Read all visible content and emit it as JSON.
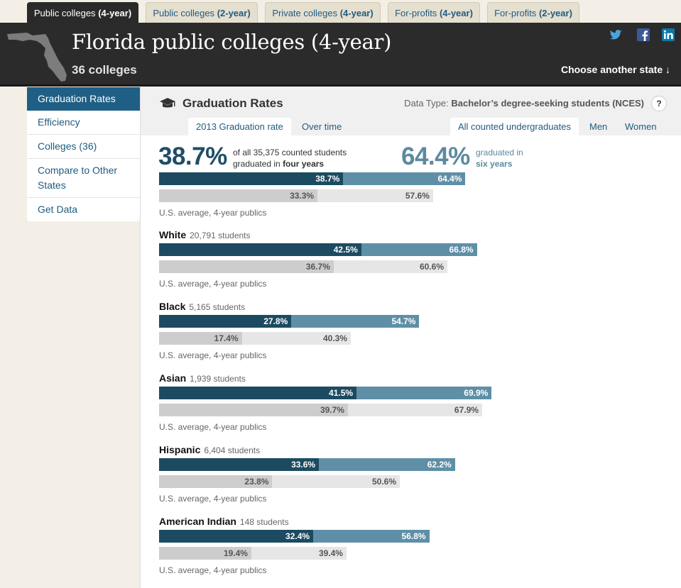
{
  "tabs": [
    {
      "label_main": "Public colleges",
      "label_sub": "(4-year)",
      "active": true
    },
    {
      "label_main": "Public colleges",
      "label_sub": "(2-year)",
      "active": false
    },
    {
      "label_main": "Private colleges",
      "label_sub": "(4-year)",
      "active": false
    },
    {
      "label_main": "For-profits",
      "label_sub": "(4-year)",
      "active": false
    },
    {
      "label_main": "For-profits",
      "label_sub": "(2-year)",
      "active": false
    }
  ],
  "header": {
    "title": "Florida public colleges (4-year)",
    "subtitle": "36 colleges",
    "choose_state": "Choose another state ↓",
    "social": [
      "twitter-icon",
      "facebook-icon",
      "linkedin-icon"
    ]
  },
  "sidebar": {
    "items": [
      {
        "label": "Graduation Rates",
        "active": true
      },
      {
        "label": "Efficiency",
        "active": false
      },
      {
        "label": "Colleges (36)",
        "active": false
      },
      {
        "label": "Compare to Other States",
        "active": false
      },
      {
        "label": "Get Data",
        "active": false
      }
    ]
  },
  "main": {
    "section_title": "Graduation Rates",
    "data_type_label": "Data Type:",
    "data_type_value": "Bachelor’s degree-seeking students (NCES)",
    "help": "?",
    "subtabs_left": [
      {
        "label": "2013 Graduation rate",
        "active": true
      },
      {
        "label": "Over time",
        "active": false
      }
    ],
    "subtabs_right": [
      {
        "label": "All counted undergraduates",
        "active": true
      },
      {
        "label": "Men",
        "active": false
      },
      {
        "label": "Women",
        "active": false
      }
    ],
    "summary": {
      "four_year_pct": "38.7%",
      "four_text_1": "of all 35,375 counted students",
      "four_text_2a": "graduated in ",
      "four_text_2b": "four years",
      "six_year_pct": "64.4%",
      "six_text_1": "graduated in",
      "six_text_2": "six years"
    },
    "avg_label": "U.S. average, 4-year publics",
    "groups": [
      {
        "name": "",
        "students": "",
        "four": 38.7,
        "six": 64.4,
        "avg_four": 33.3,
        "avg_six": 57.6
      },
      {
        "name": "White",
        "students": "20,791 students",
        "four": 42.5,
        "six": 66.8,
        "avg_four": 36.7,
        "avg_six": 60.6
      },
      {
        "name": "Black",
        "students": "5,165 students",
        "four": 27.8,
        "six": 54.7,
        "avg_four": 17.4,
        "avg_six": 40.3
      },
      {
        "name": "Asian",
        "students": "1,939 students",
        "four": 41.5,
        "six": 69.9,
        "avg_four": 39.7,
        "avg_six": 67.9
      },
      {
        "name": "Hispanic",
        "students": "6,404 students",
        "four": 33.6,
        "six": 62.2,
        "avg_four": 23.8,
        "avg_six": 50.6
      },
      {
        "name": "American Indian",
        "students": "148 students",
        "four": 32.4,
        "six": 56.8,
        "avg_four": 19.4,
        "avg_six": 39.4
      }
    ]
  },
  "colors": {
    "four_bar": "#1c4b61",
    "six_bar": "#5f8fa7",
    "avg_four_bar": "#cdcdcd",
    "avg_six_bar": "#e6e6e6",
    "header_bg": "#2b2b2b",
    "nav_active": "#1f5f85"
  }
}
